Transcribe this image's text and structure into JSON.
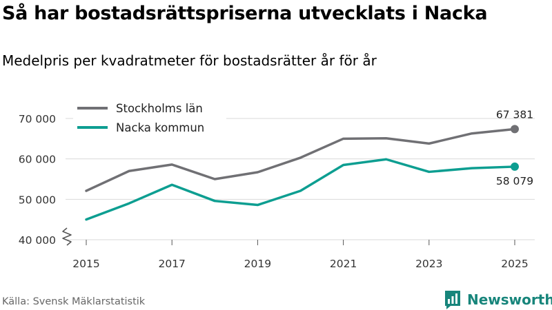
{
  "title": "Så har bostadsrättspriserna utvecklats i Nacka",
  "subtitle": "Medelpris per kvadratmeter för bostadsrätter år för år",
  "source": "Källa: Svensk Mäklarstatistik",
  "brand": {
    "name": "Newsworthy",
    "color": "#17857b"
  },
  "chart_data": {
    "type": "line",
    "title": "Så har bostadsrättspriserna utvecklats i Nacka",
    "subtitle": "Medelpris per kvadratmeter för bostadsrätter år för år",
    "xlabel": "",
    "ylabel": "",
    "x": [
      2015,
      2016,
      2017,
      2018,
      2019,
      2020,
      2021,
      2022,
      2023,
      2024,
      2025
    ],
    "x_ticks": [
      "2015",
      "2017",
      "2019",
      "2021",
      "2023",
      "2025"
    ],
    "y_ticks": [
      {
        "value": 40000,
        "label": "40 000"
      },
      {
        "value": 50000,
        "label": "50 000"
      },
      {
        "value": 60000,
        "label": "60 000"
      },
      {
        "value": 70000,
        "label": "70 000"
      }
    ],
    "ylim": [
      40000,
      70000
    ],
    "axis_break": true,
    "grid": true,
    "legend_position": "top-left",
    "series": [
      {
        "name": "Stockholms län",
        "color": "#707074",
        "values": [
          52100,
          57000,
          58600,
          55000,
          56700,
          60300,
          65000,
          65100,
          63800,
          66300,
          67381
        ],
        "end_label": "67 381"
      },
      {
        "name": "Nacka kommun",
        "color": "#0d9e91",
        "values": [
          45000,
          49000,
          53600,
          49600,
          48600,
          52100,
          58500,
          59900,
          56800,
          57700,
          58079
        ],
        "end_label": "58 079"
      }
    ]
  }
}
